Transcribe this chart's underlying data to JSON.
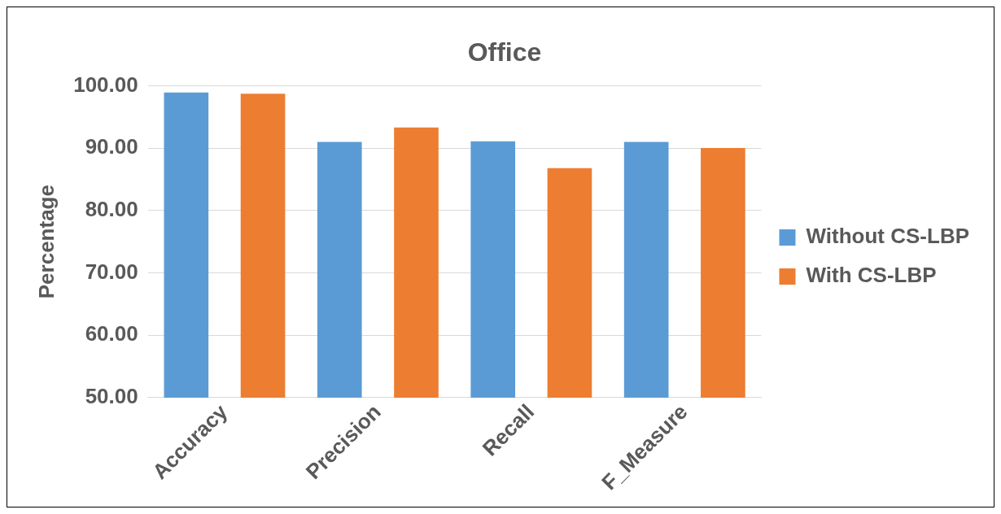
{
  "chart_data": {
    "type": "bar",
    "title": "Office",
    "ylabel": "Percentage",
    "categories": [
      "Accuracy",
      "Precision",
      "Recall",
      "F_Measure"
    ],
    "series": [
      {
        "name": "Without CS-LBP",
        "color": "#5b9bd5",
        "values": [
          98.9,
          91.0,
          91.1,
          91.0
        ]
      },
      {
        "name": "With CS-LBP",
        "color": "#ed7d31",
        "values": [
          98.7,
          93.3,
          86.8,
          90.0
        ]
      }
    ],
    "ylim": [
      50,
      100
    ],
    "yticks": [
      {
        "value": 50,
        "label": "50.00"
      },
      {
        "value": 60,
        "label": "60.00"
      },
      {
        "value": 70,
        "label": "70.00"
      },
      {
        "value": 80,
        "label": "80.00"
      },
      {
        "value": 90,
        "label": "90.00"
      },
      {
        "value": 100,
        "label": "100.00"
      }
    ],
    "grid": "y",
    "legend": "right"
  }
}
